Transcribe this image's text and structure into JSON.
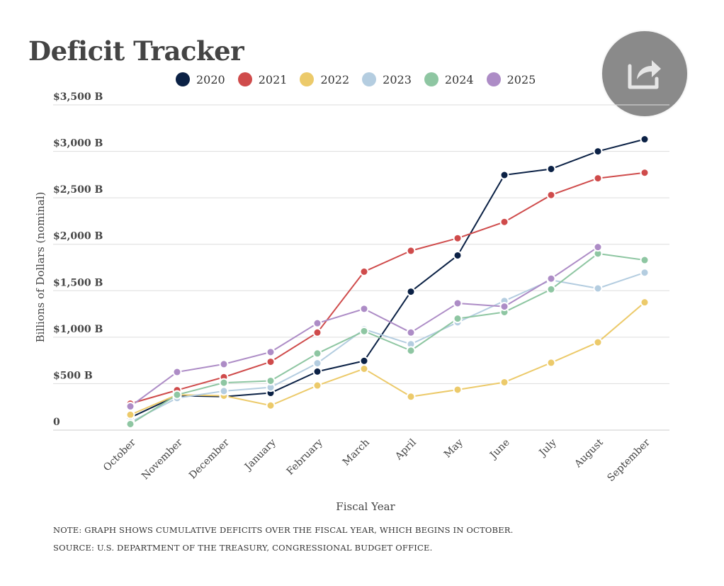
{
  "title": "Deficit Tracker",
  "share": {
    "icon": "share-icon"
  },
  "notes": {
    "note": "NOTE: GRAPH SHOWS CUMULATIVE DEFICITS OVER THE FISCAL YEAR, WHICH BEGINS IN OCTOBER.",
    "source": "SOURCE: U.S. DEPARTMENT OF THE TREASURY, CONGRESSIONAL BUDGET OFFICE."
  },
  "chart_data": {
    "type": "line",
    "xlabel": "Fiscal Year",
    "ylabel": "Billions of Dollars (nominal)",
    "ylim": [
      0,
      3500
    ],
    "yticks": [
      {
        "value": 0,
        "label": "0"
      },
      {
        "value": 500,
        "label": "$500 B"
      },
      {
        "value": 1000,
        "label": "$1,000 B"
      },
      {
        "value": 1500,
        "label": "$1,500 B"
      },
      {
        "value": 2000,
        "label": "$2,000 B"
      },
      {
        "value": 2500,
        "label": "$2,500 B"
      },
      {
        "value": 3000,
        "label": "$3,000 B"
      },
      {
        "value": 3500,
        "label": "$3,500 B"
      }
    ],
    "grid": true,
    "legend": "top",
    "categories": [
      "October",
      "November",
      "December",
      "January",
      "February",
      "March",
      "April",
      "May",
      "June",
      "July",
      "August",
      "September"
    ],
    "series": [
      {
        "name": "2020",
        "color": "#0b2145",
        "values": [
          135,
          370,
          360,
          400,
          630,
          745,
          1490,
          1880,
          2745,
          2810,
          3000,
          3130
        ]
      },
      {
        "name": "2021",
        "color": "#cf4b4b",
        "values": [
          285,
          430,
          570,
          735,
          1050,
          1705,
          1930,
          2065,
          2240,
          2530,
          2710,
          2770
        ]
      },
      {
        "name": "2022",
        "color": "#ecca6a",
        "values": [
          165,
          380,
          370,
          265,
          480,
          660,
          360,
          435,
          515,
          725,
          945,
          1375
        ]
      },
      {
        "name": "2023",
        "color": "#b4cde0",
        "values": [
          85,
          345,
          420,
          460,
          720,
          1085,
          925,
          1160,
          1390,
          1615,
          1525,
          1695
        ]
      },
      {
        "name": "2024",
        "color": "#8ec6a2",
        "values": [
          65,
          380,
          510,
          530,
          825,
          1065,
          855,
          1200,
          1270,
          1515,
          1900,
          1830
        ]
      },
      {
        "name": "2025",
        "color": "#ad8cc6",
        "values": [
          255,
          625,
          710,
          840,
          1150,
          1305,
          1050,
          1365,
          1330,
          1630,
          1970,
          null
        ]
      }
    ]
  }
}
